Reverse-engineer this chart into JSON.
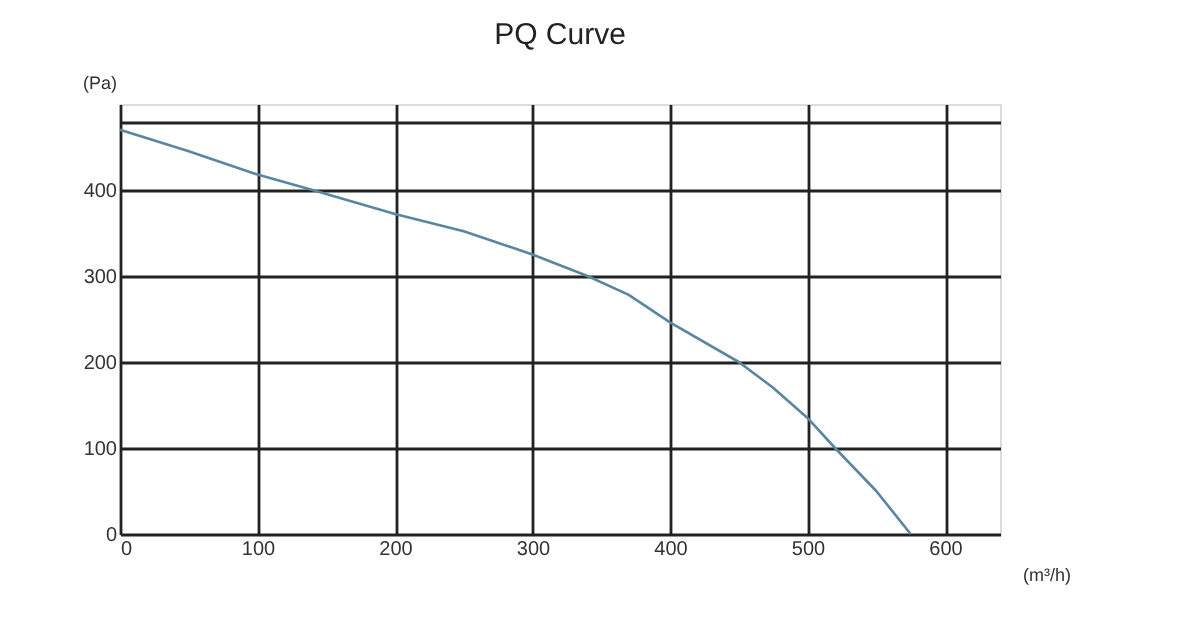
{
  "chart_data": {
    "type": "line",
    "title": "PQ Curve",
    "xlabel": "(m³/h)",
    "ylabel": "(Pa)",
    "x": [
      0,
      50,
      100,
      140,
      200,
      250,
      300,
      340,
      370,
      400,
      450,
      475,
      500,
      520,
      550,
      575
    ],
    "series": [
      {
        "color": "#5a86a0",
        "values": [
          470,
          445,
          418,
          400,
          372,
          352,
          325,
          300,
          278,
          246,
          200,
          170,
          135,
          100,
          50,
          0
        ]
      }
    ],
    "xlim": [
      0,
      640
    ],
    "xticks": [
      0,
      100,
      200,
      300,
      400,
      500,
      600
    ],
    "ylim": [
      0,
      500
    ],
    "yticks": [
      0,
      100,
      200,
      300,
      400,
      {
        "value": 480,
        "label": null
      }
    ],
    "grid": true,
    "marker": "none",
    "line_style": "solid"
  }
}
